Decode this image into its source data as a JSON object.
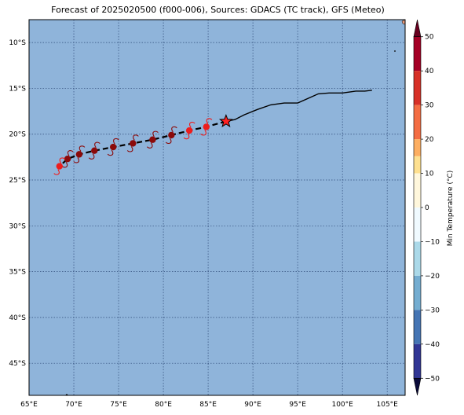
{
  "title": "Forecast of 2025020500 (f000-006), Sources: GDACS (TC track), GFS (Meteo)",
  "colors": {
    "ocean": "#8fb4da",
    "grid": "#2e4a78",
    "track_observed": "#000000",
    "track_forecast": "#000000",
    "storm_center": "#ff2222",
    "marker_strong": "#8b0a0a",
    "marker_weak": "#ee1c1c"
  },
  "map": {
    "lon_range": [
      65,
      107
    ],
    "lat_range": [
      -48.5,
      -7.5
    ],
    "lon_ticks": [
      {
        "value": 65,
        "label": "65°E"
      },
      {
        "value": 70,
        "label": "70°E"
      },
      {
        "value": 75,
        "label": "75°E"
      },
      {
        "value": 80,
        "label": "80°E"
      },
      {
        "value": 85,
        "label": "85°E"
      },
      {
        "value": 90,
        "label": "90°E"
      },
      {
        "value": 95,
        "label": "95°E"
      },
      {
        "value": 100,
        "label": "100°E"
      },
      {
        "value": 105,
        "label": "105°E"
      }
    ],
    "lat_ticks": [
      {
        "value": -10,
        "label": "10°S"
      },
      {
        "value": -15,
        "label": "15°S"
      },
      {
        "value": -20,
        "label": "20°S"
      },
      {
        "value": -25,
        "label": "25°S"
      },
      {
        "value": -30,
        "label": "30°S"
      },
      {
        "value": -35,
        "label": "35°S"
      },
      {
        "value": -40,
        "label": "40°S"
      },
      {
        "value": -45,
        "label": "45°S"
      }
    ],
    "observed_track": [
      [
        103.3,
        -15.2
      ],
      [
        102.5,
        -15.3
      ],
      [
        101.5,
        -15.3
      ],
      [
        100.0,
        -15.5
      ],
      [
        98.5,
        -15.5
      ],
      [
        97.3,
        -15.6
      ],
      [
        95.0,
        -16.6
      ],
      [
        93.5,
        -16.6
      ],
      [
        92.0,
        -16.8
      ],
      [
        90.5,
        -17.3
      ],
      [
        89.0,
        -17.9
      ],
      [
        88.0,
        -18.4
      ],
      [
        87.0,
        -18.6
      ]
    ],
    "forecast_track": [
      [
        87.0,
        -18.6
      ],
      [
        84.8,
        -19.2
      ],
      [
        82.9,
        -19.6
      ],
      [
        80.9,
        -20.1
      ],
      [
        78.8,
        -20.6
      ],
      [
        76.6,
        -21.0
      ],
      [
        74.4,
        -21.4
      ],
      [
        72.3,
        -21.8
      ],
      [
        70.6,
        -22.2
      ],
      [
        69.3,
        -22.7
      ],
      [
        68.4,
        -23.5
      ]
    ],
    "current_position": {
      "lon": 87.0,
      "lat": -18.6
    },
    "forecast_markers": [
      {
        "lon": 84.8,
        "lat": -19.2,
        "intensity": "weak"
      },
      {
        "lon": 82.9,
        "lat": -19.6,
        "intensity": "weak"
      },
      {
        "lon": 80.9,
        "lat": -20.1,
        "intensity": "strong"
      },
      {
        "lon": 78.8,
        "lat": -20.6,
        "intensity": "strong"
      },
      {
        "lon": 76.6,
        "lat": -21.0,
        "intensity": "strong"
      },
      {
        "lon": 74.4,
        "lat": -21.4,
        "intensity": "strong"
      },
      {
        "lon": 72.3,
        "lat": -21.8,
        "intensity": "strong"
      },
      {
        "lon": 70.6,
        "lat": -22.2,
        "intensity": "strong"
      },
      {
        "lon": 69.3,
        "lat": -22.7,
        "intensity": "strong"
      },
      {
        "lon": 68.4,
        "lat": -23.5,
        "intensity": "weak"
      }
    ]
  },
  "colorbar": {
    "label": "Min Temperature (°C)",
    "min": -55,
    "max": 55,
    "tick_values": [
      50,
      40,
      30,
      20,
      10,
      0,
      -10,
      -20,
      -30,
      -40,
      -50
    ],
    "tick_labels": [
      "50",
      "40",
      "30",
      "20",
      "10",
      "0",
      "−10",
      "−20",
      "−30",
      "−40",
      "−50"
    ],
    "levels": [
      {
        "from": 50,
        "to": 55,
        "color": "#67001f"
      },
      {
        "from": 40,
        "to": 50,
        "color": "#a50026"
      },
      {
        "from": 30,
        "to": 40,
        "color": "#d73027"
      },
      {
        "from": 20,
        "to": 30,
        "color": "#f46d43"
      },
      {
        "from": 15,
        "to": 20,
        "color": "#fdae61"
      },
      {
        "from": 10,
        "to": 15,
        "color": "#fee090"
      },
      {
        "from": 0,
        "to": 10,
        "color": "#fff7dc"
      },
      {
        "from": -10,
        "to": 0,
        "color": "#f0faff"
      },
      {
        "from": -20,
        "to": -10,
        "color": "#abd9e9"
      },
      {
        "from": -30,
        "to": -20,
        "color": "#74add1"
      },
      {
        "from": -40,
        "to": -30,
        "color": "#4575b4"
      },
      {
        "from": -50,
        "to": -40,
        "color": "#313695"
      },
      {
        "from": -55,
        "to": -50,
        "color": "#0b0b3a"
      }
    ]
  }
}
